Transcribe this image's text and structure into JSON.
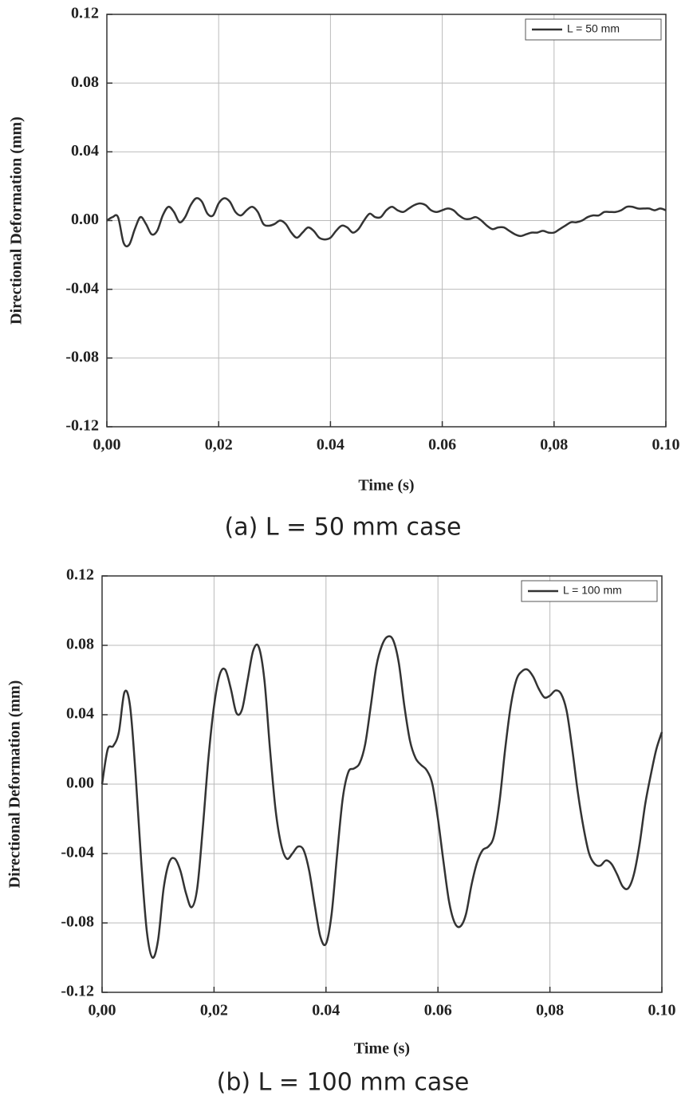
{
  "chart_data": [
    {
      "type": "line",
      "caption": "(a) L = 50 mm case",
      "xlabel": "Time (s)",
      "ylabel": "Directional Deformation (mm)",
      "xlim": [
        0,
        0.1
      ],
      "ylim": [
        -0.12,
        0.12
      ],
      "xticks": [
        {
          "value": 0,
          "label": "0,00"
        },
        {
          "value": 0.02,
          "label": "0,02"
        },
        {
          "value": 0.04,
          "label": "0.04"
        },
        {
          "value": 0.06,
          "label": "0.06"
        },
        {
          "value": 0.08,
          "label": "0,08"
        },
        {
          "value": 0.1,
          "label": "0.10"
        }
      ],
      "yticks": [
        0.12,
        0.08,
        0.04,
        {
          "value": 0,
          "label": "0.00"
        },
        -0.04,
        -0.08,
        -0.12
      ],
      "grid": true,
      "legend": "upper right",
      "x": [
        0,
        0.001,
        0.002,
        0.003,
        0.004,
        0.005,
        0.006,
        0.007,
        0.008,
        0.009,
        0.01,
        0.011,
        0.012,
        0.013,
        0.014,
        0.015,
        0.016,
        0.017,
        0.018,
        0.019,
        0.02,
        0.021,
        0.022,
        0.023,
        0.024,
        0.025,
        0.026,
        0.027,
        0.028,
        0.029,
        0.03,
        0.031,
        0.032,
        0.033,
        0.034,
        0.035,
        0.036,
        0.037,
        0.038,
        0.039,
        0.04,
        0.041,
        0.042,
        0.043,
        0.044,
        0.045,
        0.046,
        0.047,
        0.048,
        0.049,
        0.05,
        0.051,
        0.052,
        0.053,
        0.054,
        0.055,
        0.056,
        0.057,
        0.058,
        0.059,
        0.06,
        0.061,
        0.062,
        0.063,
        0.064,
        0.065,
        0.066,
        0.067,
        0.068,
        0.069,
        0.07,
        0.071,
        0.072,
        0.073,
        0.074,
        0.075,
        0.076,
        0.077,
        0.078,
        0.079,
        0.08,
        0.081,
        0.082,
        0.083,
        0.084,
        0.085,
        0.086,
        0.087,
        0.088,
        0.089,
        0.09,
        0.091,
        0.092,
        0.093,
        0.094,
        0.095,
        0.096,
        0.097,
        0.098,
        0.099,
        0.1
      ],
      "series": [
        {
          "name": "L = 50 mm",
          "color": "#333333",
          "values": [
            0.0,
            0.002,
            0.002,
            -0.013,
            -0.014,
            -0.005,
            0.002,
            -0.002,
            -0.008,
            -0.006,
            0.003,
            0.008,
            0.005,
            -0.001,
            0.002,
            0.009,
            0.013,
            0.011,
            0.004,
            0.003,
            0.01,
            0.013,
            0.011,
            0.005,
            0.003,
            0.006,
            0.008,
            0.005,
            -0.002,
            -0.003,
            -0.002,
            0.0,
            -0.002,
            -0.007,
            -0.01,
            -0.007,
            -0.004,
            -0.006,
            -0.01,
            -0.011,
            -0.01,
            -0.006,
            -0.003,
            -0.004,
            -0.007,
            -0.005,
            0.0,
            0.004,
            0.002,
            0.002,
            0.006,
            0.008,
            0.006,
            0.005,
            0.007,
            0.009,
            0.01,
            0.009,
            0.006,
            0.005,
            0.006,
            0.007,
            0.006,
            0.003,
            0.001,
            0.001,
            0.002,
            0.0,
            -0.003,
            -0.005,
            -0.004,
            -0.004,
            -0.006,
            -0.008,
            -0.009,
            -0.008,
            -0.007,
            -0.007,
            -0.006,
            -0.007,
            -0.007,
            -0.005,
            -0.003,
            -0.001,
            -0.001,
            0.0,
            0.002,
            0.003,
            0.003,
            0.005,
            0.005,
            0.005,
            0.006,
            0.008,
            0.008,
            0.007,
            0.007,
            0.007,
            0.006,
            0.007,
            0.006
          ]
        }
      ]
    },
    {
      "type": "line",
      "caption": "(b) L = 100 mm case",
      "xlabel": "Time (s)",
      "ylabel": "Directional Deformation (mm)",
      "xlim": [
        0,
        0.1
      ],
      "ylim": [
        -0.12,
        0.12
      ],
      "xticks": [
        {
          "value": 0,
          "label": "0,00"
        },
        {
          "value": 0.02,
          "label": "0,02"
        },
        {
          "value": 0.04,
          "label": "0.04"
        },
        {
          "value": 0.06,
          "label": "0.06"
        },
        {
          "value": 0.08,
          "label": "0,08"
        },
        {
          "value": 0.1,
          "label": "0.10"
        }
      ],
      "yticks": [
        0.12,
        0.08,
        0.04,
        {
          "value": 0,
          "label": "0.00"
        },
        -0.04,
        -0.08,
        -0.12
      ],
      "grid": true,
      "legend": "upper right",
      "x": [
        0,
        0.001,
        0.002,
        0.003,
        0.004,
        0.005,
        0.006,
        0.007,
        0.008,
        0.009,
        0.01,
        0.011,
        0.012,
        0.013,
        0.014,
        0.015,
        0.016,
        0.017,
        0.018,
        0.019,
        0.02,
        0.021,
        0.022,
        0.023,
        0.024,
        0.025,
        0.026,
        0.027,
        0.028,
        0.029,
        0.03,
        0.031,
        0.032,
        0.033,
        0.034,
        0.035,
        0.036,
        0.037,
        0.038,
        0.039,
        0.04,
        0.041,
        0.042,
        0.043,
        0.044,
        0.045,
        0.046,
        0.047,
        0.048,
        0.049,
        0.05,
        0.051,
        0.052,
        0.053,
        0.054,
        0.055,
        0.056,
        0.057,
        0.058,
        0.059,
        0.06,
        0.061,
        0.062,
        0.063,
        0.064,
        0.065,
        0.066,
        0.067,
        0.068,
        0.069,
        0.07,
        0.071,
        0.072,
        0.073,
        0.074,
        0.075,
        0.076,
        0.077,
        0.078,
        0.079,
        0.08,
        0.081,
        0.082,
        0.083,
        0.084,
        0.085,
        0.086,
        0.087,
        0.088,
        0.089,
        0.09,
        0.091,
        0.092,
        0.093,
        0.094,
        0.095,
        0.096,
        0.097,
        0.098,
        0.099,
        0.1
      ],
      "series": [
        {
          "name": "L = 100 mm",
          "color": "#333333",
          "values": [
            0.0,
            0.02,
            0.022,
            0.03,
            0.053,
            0.045,
            0.005,
            -0.045,
            -0.085,
            -0.1,
            -0.09,
            -0.06,
            -0.045,
            -0.043,
            -0.05,
            -0.063,
            -0.071,
            -0.06,
            -0.025,
            0.015,
            0.045,
            0.063,
            0.066,
            0.055,
            0.041,
            0.043,
            0.06,
            0.077,
            0.079,
            0.06,
            0.02,
            -0.015,
            -0.035,
            -0.043,
            -0.04,
            -0.036,
            -0.038,
            -0.05,
            -0.07,
            -0.088,
            -0.092,
            -0.075,
            -0.04,
            -0.008,
            0.007,
            0.009,
            0.012,
            0.023,
            0.045,
            0.068,
            0.08,
            0.085,
            0.083,
            0.07,
            0.045,
            0.025,
            0.015,
            0.011,
            0.008,
            0.0,
            -0.02,
            -0.045,
            -0.068,
            -0.08,
            -0.082,
            -0.075,
            -0.058,
            -0.045,
            -0.038,
            -0.036,
            -0.03,
            -0.01,
            0.02,
            0.045,
            0.06,
            0.065,
            0.066,
            0.062,
            0.055,
            0.05,
            0.051,
            0.054,
            0.052,
            0.042,
            0.02,
            -0.005,
            -0.025,
            -0.04,
            -0.046,
            -0.047,
            -0.044,
            -0.046,
            -0.052,
            -0.059,
            -0.06,
            -0.052,
            -0.035,
            -0.012,
            0.005,
            0.02,
            0.03
          ]
        }
      ]
    }
  ]
}
